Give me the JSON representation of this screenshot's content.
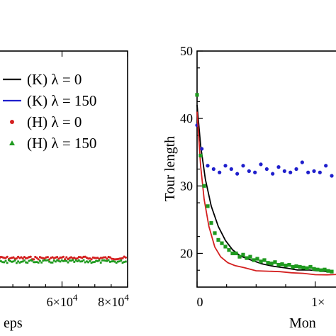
{
  "chart_data": [
    {
      "type": "line",
      "xlabel": "eps",
      "ylabel": "",
      "x_ticks": [
        {
          "value": 60000,
          "mantissa": "6×10",
          "exp": "4"
        },
        {
          "value": 80000,
          "mantissa": "8×10",
          "exp": "4"
        }
      ],
      "xlim": [
        40000,
        80000
      ],
      "legend": {
        "placement": "upper-left",
        "entries": [
          {
            "label": "(K) λ = 0",
            "marker": "line",
            "color": "#000000"
          },
          {
            "label": "(K) λ = 150",
            "marker": "line",
            "color": "#1f1fcc"
          },
          {
            "label": "(H) λ = 0",
            "marker": "dot",
            "color": "#d42020"
          },
          {
            "label": "(H) λ = 150",
            "marker": "triangle",
            "color": "#1f9a1f"
          }
        ]
      },
      "series": [
        {
          "name": "(H) λ = 0",
          "color": "#d42020",
          "style": "dots",
          "x": [
            40000,
            80000
          ],
          "y": [
            0.52,
            0.52
          ]
        },
        {
          "name": "(H) λ = 150",
          "color": "#1f9a1f",
          "style": "band",
          "x": [
            40000,
            80000
          ],
          "y": [
            0.5,
            0.5
          ]
        }
      ]
    },
    {
      "type": "line",
      "xlabel": "Mon",
      "ylabel": "Tour length",
      "ylim": [
        15,
        50
      ],
      "yticks": [
        20,
        30,
        40,
        50
      ],
      "xlim": [
        0,
        12000
      ],
      "x_ticks": [
        {
          "value": 0,
          "mantissa": "0",
          "exp": ""
        },
        {
          "value": 10000,
          "mantissa": "1×",
          "exp": ""
        }
      ],
      "series": [
        {
          "name": "(K) λ = 0",
          "color": "#000000",
          "style": "line",
          "x": [
            0,
            300,
            700,
            1200,
            1800,
            2400,
            3000,
            3700,
            4500,
            5500,
            6500,
            7500,
            8500,
            9500,
            10500,
            11500
          ],
          "y": [
            42,
            36,
            31,
            27,
            24,
            22,
            20.5,
            19.5,
            19,
            18.5,
            18,
            17.8,
            17.6,
            17.5,
            17.4,
            17.3
          ]
        },
        {
          "name": "(K) λ = 150",
          "color": "#1f1fcc",
          "style": "dots",
          "x": [
            0,
            400,
            900,
            1400,
            1900,
            2400,
            2900,
            3400,
            3900,
            4400,
            4900,
            5400,
            5900,
            6400,
            6900,
            7400,
            7900,
            8400,
            8900,
            9400,
            9900,
            10400,
            10900,
            11400
          ],
          "y": [
            39,
            35.5,
            33,
            32.5,
            32,
            33,
            32.5,
            31.8,
            33,
            32.2,
            32,
            33.2,
            32.5,
            31.8,
            32.8,
            32.2,
            32,
            32.5,
            33.5,
            32,
            32.2,
            32,
            33,
            31.5
          ]
        },
        {
          "name": "(H) λ = 0",
          "color": "#d42020",
          "style": "line",
          "x": [
            0,
            300,
            600,
            1000,
            1500,
            2000,
            2600,
            3200,
            4000,
            5000,
            6000,
            7000,
            8000,
            9000,
            10000,
            11000,
            12000
          ],
          "y": [
            41,
            33,
            28,
            24,
            21,
            19.5,
            18.7,
            18.2,
            17.8,
            17.5,
            17.3,
            17.2,
            17.1,
            17,
            16.9,
            16.9,
            16.8
          ]
        },
        {
          "name": "(H) λ = 150",
          "color": "#1f9a1f",
          "style": "squares",
          "x": [
            0,
            300,
            600,
            900,
            1200,
            1500,
            1800,
            2100,
            2400,
            2700,
            3000,
            3300,
            3600,
            3900,
            4200,
            4500,
            4800,
            5100,
            5400,
            5700,
            6000,
            6300,
            6600,
            6900,
            7200,
            7500,
            7800,
            8100,
            8400,
            8700,
            9000,
            9300,
            9600,
            9900,
            10200,
            10500,
            10800,
            11100,
            11400
          ],
          "y": [
            43.5,
            34.5,
            30,
            27,
            24.5,
            23,
            22,
            21.5,
            21,
            20.5,
            20,
            20,
            19.5,
            19.8,
            19.3,
            19.5,
            19,
            19.2,
            18.8,
            19,
            18.6,
            18.5,
            18.7,
            18.3,
            18.4,
            18.2,
            18.3,
            18,
            18.1,
            18,
            17.9,
            17.8,
            18,
            17.7,
            17.6,
            17.5,
            17.6,
            17.4,
            17.3
          ]
        }
      ]
    }
  ]
}
